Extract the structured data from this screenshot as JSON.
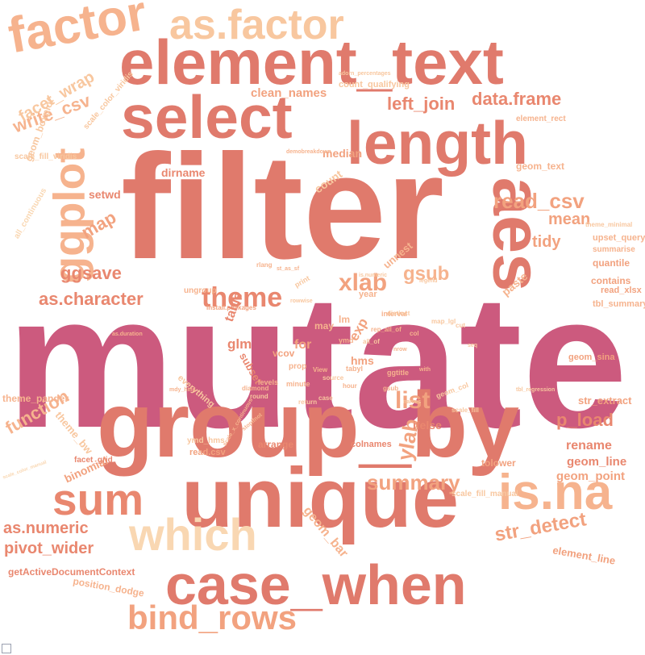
{
  "palette": {
    "c1": "#cc5a7e",
    "c2": "#e07a6c",
    "c3": "#e9876f",
    "c4": "#f2a27f",
    "c5": "#f6b38e",
    "c6": "#f8c79f",
    "c7": "#f9d7b2"
  },
  "words": {
    "mutate": "mutate",
    "filter": "filter",
    "group_by": "group_by",
    "unique": "unique",
    "element_text": "element_text",
    "select": "select",
    "length": "length",
    "aes": "aes",
    "case_when": "case_when",
    "is_na": "is.na",
    "factor": "factor",
    "as_factor": "as.factor",
    "ggplot": "ggplot",
    "which": "which",
    "sum": "sum",
    "bind_rows": "bind_rows",
    "theme": "theme",
    "as_character": "as.character",
    "left_join": "left_join",
    "data_frame": "data.frame",
    "read_csv": "read_csv",
    "list": "list",
    "summary": "summary",
    "str_detect": "str_detect",
    "xlab": "xlab",
    "ylab": "ylab",
    "gsub": "gsub",
    "ggsave": "ggsave",
    "map": "map",
    "mean": "mean",
    "tidy": "tidy",
    "p_load": "p_load",
    "function": "function",
    "write_csv": "write_csv",
    "facet_wrap": "facet_wrap",
    "as_numeric": "as.numeric",
    "pivot_wider": "pivot_wider",
    "rename": "rename",
    "geom_line": "geom_line",
    "geom_point": "geom_point",
    "geom_bar": "geom_bar",
    "median": "median",
    "dirname": "dirname",
    "setwd": "setwd",
    "binomial": "binomial",
    "theme_bw": "theme_bw",
    "theme_pander": "theme_pander",
    "clean_names": "clean_names",
    "count": "count",
    "geom_text": "geom_text",
    "unnest": "unnest",
    "quantile": "quantile",
    "contains": "contains",
    "paste": "paste",
    "summarise": "summarise",
    "read_xlsx": "read_xlsx",
    "upset_query": "upset_query",
    "geom_sina": "geom_sina",
    "str_extract": "str_extract",
    "element_line": "element_line",
    "tolower": "tolower",
    "ifelse": "ifelse",
    "arrange": "arrange",
    "colnames": "colnames",
    "position_dodge": "position_dodge",
    "getActiveDocumentContext": "getActiveDocumentContext",
    "geom_boxplot": "geom_boxplot",
    "scale_color_viridis": "scale_color_viridis",
    "scale_fill_viridis": "scale_fill_viridis",
    "all_continuous": "all_continuous",
    "count_qualifying": "count_qualifying",
    "element_rect": "element_rect",
    "facet_grid": "facet_grid",
    "ymd_hms": "ymd_hms",
    "read_csv_dot": "read.csv",
    "scale_fill_manual": "scale_fill_manual",
    "tbl_summary": "tbl_summary",
    "install_packages": "install.packages",
    "glm": "glm",
    "table": "table",
    "for": "for",
    "exp": "exp",
    "hms": "hms",
    "subset": "subset",
    "vcov": "vcov",
    "year": "year",
    "interval": "interval",
    "theme_minimal": "theme_minimal",
    "ungroup": "ungroup",
    "everything": "everything",
    "mdy_hms": "mdy_hms",
    "as_duration": "as.duration",
    "ymd": "ymd",
    "hour": "hour",
    "minute": "minute",
    "demobreakdown": "demobreakdown",
    "st_as_sf": "st_as_sf",
    "rlang": "rlang",
    "print": "print",
    "source": "source",
    "ggtitle": "ggtitle",
    "view": "View",
    "tabyl": "tabyl",
    "rep_all_of": "rep_all_of",
    "nrow": "nrow",
    "with": "with",
    "col": "col",
    "stopifnot": "stopifnot",
    "scale_x_continuous": "scale_x_continuous",
    "scale_color_manual": "scale_color_manual",
    "tbl_regression": "tbl_regression",
    "adorn_percentages": "adorn_percentages",
    "map_lgl": "map_lgl",
    "geom_col": "geom_col",
    "scale_fill": "scale_fill",
    "levels": "levels",
    "case": "case",
    "return": "return",
    "gsub2": "gsub",
    "may": "may",
    "Im": "lm",
    "round": "round",
    "prop": "prop",
    "diamond": "diamond",
    "distinct": "distinct",
    "names": "names",
    "legend": "legend",
    "is_numeric": "is.numeric",
    "cut": "cut",
    "all_of": "all_of",
    "seq": "seq",
    "rowwise": "rowwise"
  }
}
